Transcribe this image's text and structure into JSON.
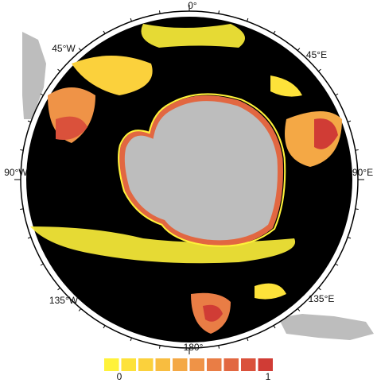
{
  "map": {
    "graticule_labels": [
      "0°",
      "45°E",
      "90°E",
      "135°E",
      "180°",
      "135°W",
      "90°W",
      "45°W"
    ],
    "colorbar": {
      "min": 0,
      "max": 1,
      "colors": [
        "#fff23a",
        "#fde23a",
        "#fbd13c",
        "#f8bd40",
        "#f4a845",
        "#ef9347",
        "#e97d45",
        "#e26741",
        "#da513b",
        "#d03c35"
      ]
    }
  }
}
